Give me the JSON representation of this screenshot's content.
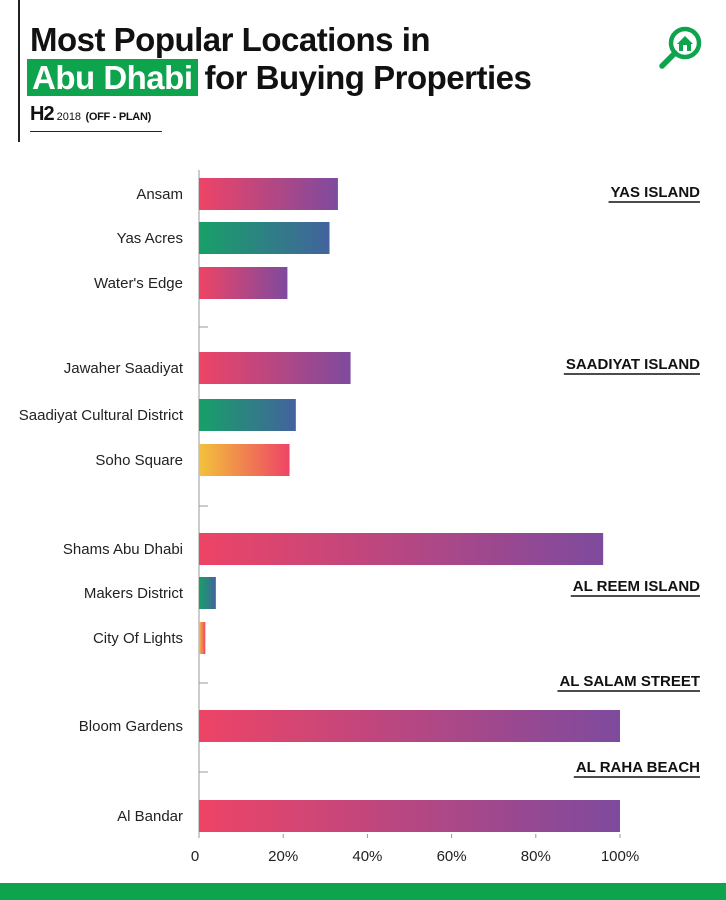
{
  "header": {
    "title_line1": "Most Popular Locations in",
    "title_highlight": "Abu Dhabi",
    "title_line2_rest": "for Buying Properties",
    "period": "H2",
    "year": "2018",
    "phase": "(OFF - PLAN)",
    "logo_icon": "search-home-icon"
  },
  "colors": {
    "brand_green": "#0ea34d",
    "pink": "#ee4466",
    "purple": "#7e4a9e",
    "teal_green": "#17a067",
    "slate_blue": "#43639e",
    "yellow": "#f2c23a",
    "coral": "#f06369"
  },
  "chart_data": {
    "type": "bar",
    "orientation": "horizontal",
    "categories": [
      "Ansam",
      "Yas Acres",
      "Water's Edge",
      "Jawaher Saadiyat",
      "Saadiyat Cultural District",
      "Soho Square",
      "Shams Abu Dhabi",
      "Makers District",
      "City Of Lights",
      "Bloom Gardens",
      "Al Bandar"
    ],
    "values": [
      33,
      31,
      21,
      36,
      23,
      21.5,
      96,
      4,
      1.5,
      100,
      100
    ],
    "groups": [
      {
        "name": "YAS ISLAND",
        "categories": [
          "Ansam",
          "Yas Acres",
          "Water's Edge"
        ]
      },
      {
        "name": "SAADIYAT ISLAND",
        "categories": [
          "Jawaher Saadiyat",
          "Saadiyat Cultural District",
          "Soho Square"
        ]
      },
      {
        "name": "AL REEM ISLAND",
        "categories": [
          "Shams Abu Dhabi",
          "Makers District",
          "City Of Lights"
        ]
      },
      {
        "name": "AL SALAM STREET",
        "categories": [
          "Bloom Gardens"
        ]
      },
      {
        "name": "AL RAHA BEACH",
        "categories": [
          "Al Bandar"
        ]
      }
    ],
    "xlim": [
      0,
      100
    ],
    "xticks": [
      "0",
      "20%",
      "40%",
      "60%",
      "80%",
      "100%"
    ],
    "xlabel": "",
    "ylabel": "",
    "grid": false,
    "legend": "none"
  }
}
